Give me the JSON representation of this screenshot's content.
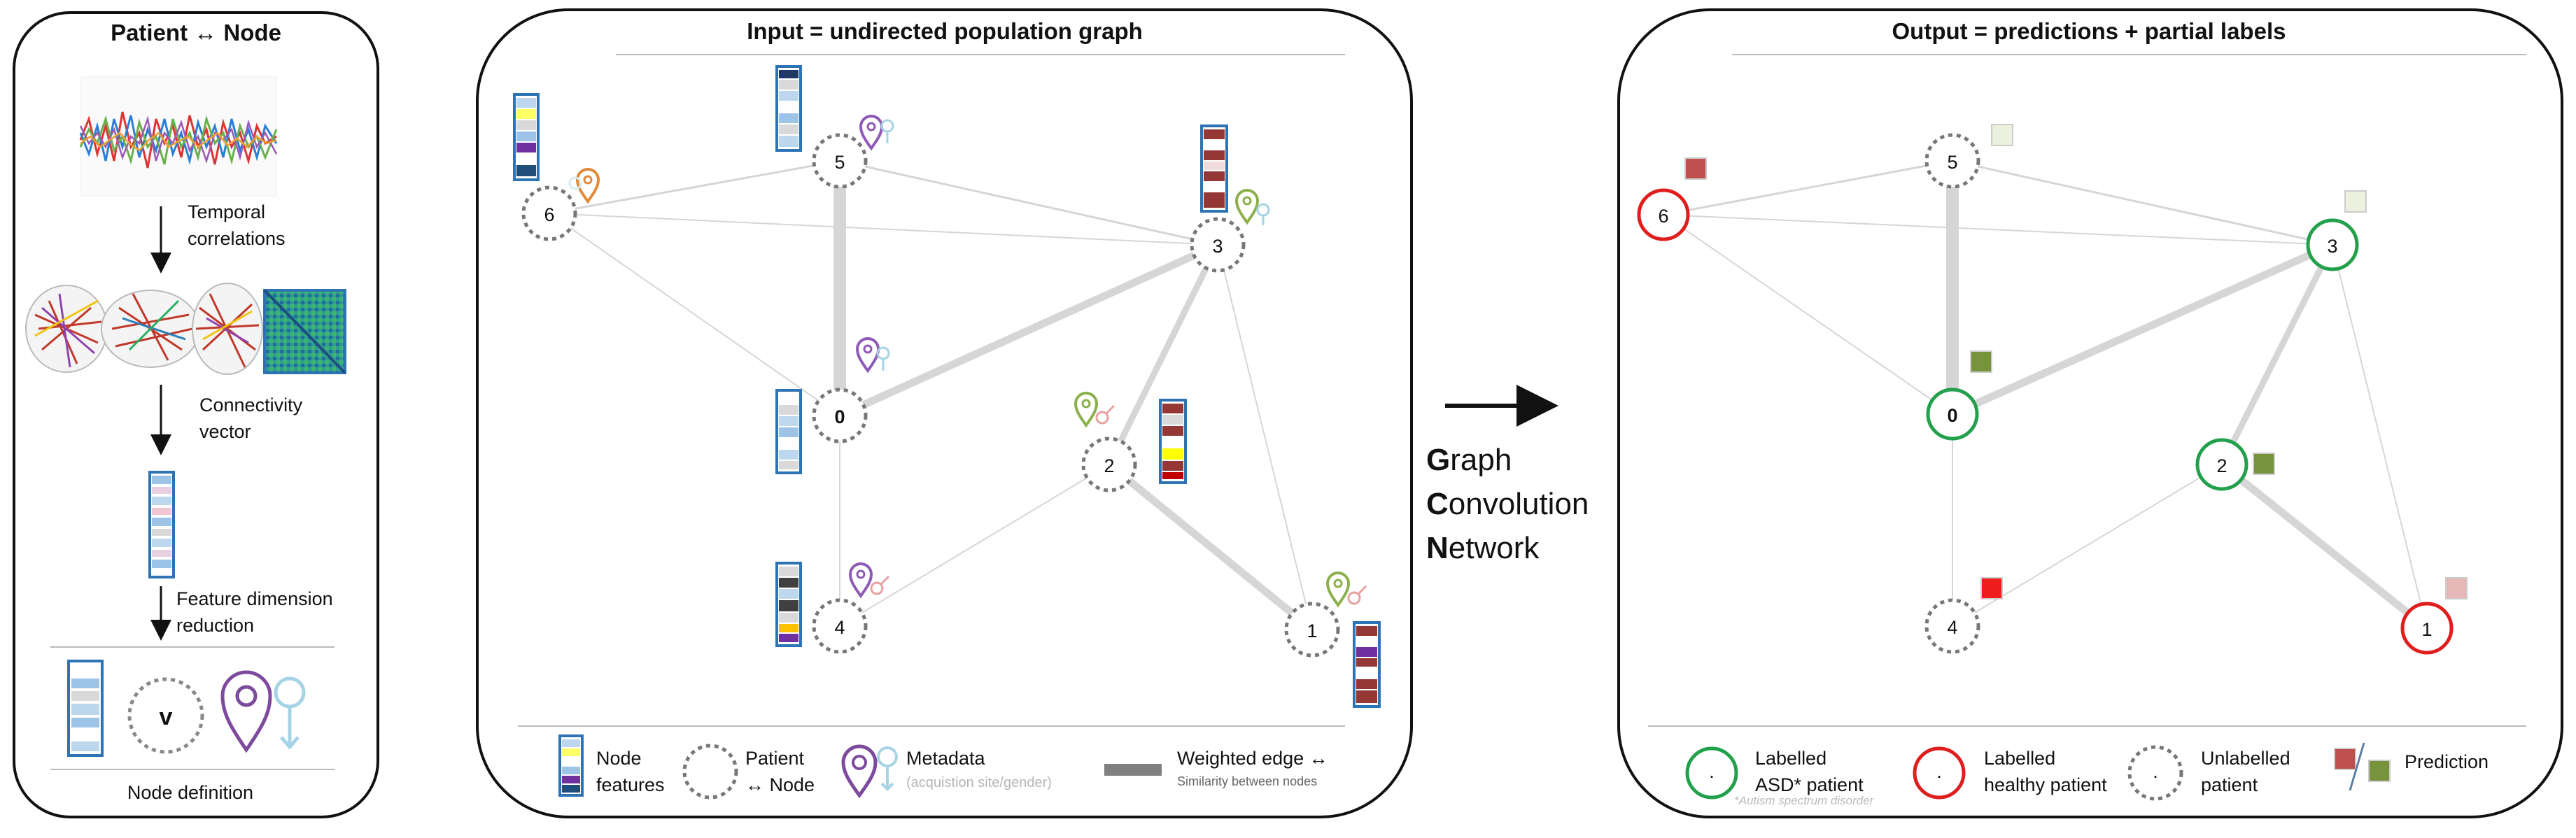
{
  "panel1": {
    "title": "Patient ↔ Node",
    "step1": [
      "Temporal",
      "correlations"
    ],
    "step2": [
      "Connectivity",
      "vector"
    ],
    "step3": [
      "Feature dimension",
      "reduction"
    ],
    "node_letter": "v",
    "caption": "Node definition"
  },
  "panel2": {
    "title": "Input  =  undirected population graph",
    "nodes": [
      {
        "id": "0",
        "label": "0"
      },
      {
        "id": "1",
        "label": "1"
      },
      {
        "id": "2",
        "label": "2"
      },
      {
        "id": "3",
        "label": "3"
      },
      {
        "id": "4",
        "label": "4"
      },
      {
        "id": "5",
        "label": "5"
      },
      {
        "id": "6",
        "label": "6"
      }
    ],
    "legend": {
      "features": [
        "Node",
        "features"
      ],
      "patient": [
        "Patient",
        "↔ Node"
      ],
      "metadata": "Metadata",
      "metadata_sub": "(acquistion site/gender)",
      "edge": "Weighted edge ↔",
      "edge_sub": "Similarity between nodes"
    }
  },
  "gcn": {
    "words": [
      {
        "initial": "G",
        "rest": "raph"
      },
      {
        "initial": "C",
        "rest": "onvolution"
      },
      {
        "initial": "N",
        "rest": "etwork"
      }
    ]
  },
  "panel3": {
    "title": "Output = predictions + partial labels",
    "nodes": [
      {
        "id": "0",
        "label": "0",
        "status": "asd"
      },
      {
        "id": "1",
        "label": "1",
        "status": "healthy"
      },
      {
        "id": "2",
        "label": "2",
        "status": "asd"
      },
      {
        "id": "3",
        "label": "3",
        "status": "asd"
      },
      {
        "id": "4",
        "label": "4",
        "status": "unlabelled"
      },
      {
        "id": "5",
        "label": "5",
        "status": "unlabelled"
      },
      {
        "id": "6",
        "label": "6",
        "status": "healthy"
      }
    ],
    "legend": {
      "asd": [
        "Labelled",
        "ASD* patient"
      ],
      "healthy": [
        "Labelled",
        "healthy patient"
      ],
      "unlabelled": [
        "Unlabelled",
        "patient"
      ],
      "prediction": "Prediction",
      "dot": ".",
      "footnote": "*Autism spectrum disorder"
    }
  },
  "colors": {
    "asd": "#22a04b",
    "healthy": "#e01e1e",
    "unlabelled": "#777777",
    "edge": "#d6d6d6",
    "metadata": "#7d4a9e",
    "feature_border": "#2e74b5"
  }
}
